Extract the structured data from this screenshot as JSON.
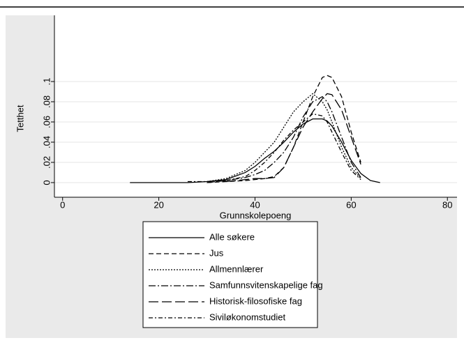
{
  "chart_data": {
    "type": "line",
    "y_label": "Tetthet",
    "x_label": "Grunnskolepoeng",
    "x": [
      14,
      20,
      26,
      30,
      34,
      38,
      40,
      42,
      44,
      46,
      48,
      50,
      52,
      54,
      55,
      56,
      58,
      60,
      62,
      64,
      66
    ],
    "series": [
      {
        "name": "Alle søkere",
        "color": "#000000",
        "dash": "none",
        "values": [
          0,
          0,
          0,
          0.001,
          0.003,
          0.01,
          0.016,
          0.024,
          0.031,
          0.04,
          0.05,
          0.058,
          0.063,
          0.063,
          0.061,
          0.056,
          0.04,
          0.022,
          0.009,
          0.002,
          0
        ]
      },
      {
        "name": "Jus",
        "color": "#000000",
        "dash": "7 4",
        "values": [
          null,
          null,
          null,
          0,
          0.001,
          0.002,
          0.003,
          0.004,
          0.006,
          0.015,
          0.035,
          0.06,
          0.085,
          0.104,
          0.106,
          0.104,
          0.085,
          0.05,
          0.02,
          null,
          null
        ]
      },
      {
        "name": "Allmennlærer",
        "color": "#000000",
        "dash": "2 2",
        "values": [
          null,
          null,
          null,
          0.001,
          0.004,
          0.012,
          0.02,
          0.03,
          0.04,
          0.055,
          0.07,
          0.08,
          0.088,
          0.08,
          0.072,
          0.06,
          0.035,
          0.015,
          0.004,
          null,
          null
        ]
      },
      {
        "name": "Samfunnsvitenskapelige fag",
        "color": "#000000",
        "dash": "10 3 2 3",
        "values": [
          null,
          null,
          null,
          0,
          0.002,
          0.005,
          0.008,
          0.012,
          0.02,
          0.03,
          0.045,
          0.065,
          0.08,
          0.085,
          0.08,
          0.07,
          0.045,
          0.02,
          0.005,
          null,
          null
        ]
      },
      {
        "name": "Historisk-filosofiske fag",
        "color": "#000000",
        "dash": "14 5",
        "values": [
          null,
          null,
          null,
          null,
          0.001,
          0.003,
          0.004,
          0.004,
          0.005,
          0.015,
          0.035,
          0.055,
          0.07,
          0.083,
          0.088,
          0.087,
          0.072,
          0.045,
          0.018,
          null,
          null
        ]
      },
      {
        "name": "Siviløkonomstudiet",
        "color": "#000000",
        "dash": "6 3 2 3",
        "values": [
          null,
          null,
          0.001,
          0.001,
          0.002,
          0.006,
          0.012,
          0.02,
          0.03,
          0.042,
          0.052,
          0.06,
          0.068,
          0.066,
          0.06,
          0.05,
          0.03,
          0.012,
          0.003,
          null,
          null
        ]
      }
    ],
    "xlim": [
      -1.7,
      82
    ],
    "xticks": [
      0,
      20,
      40,
      60,
      80
    ],
    "ylim": [
      -0.0145,
      0.1655
    ],
    "yticks": [
      0,
      {
        "value": 0.02,
        "label": ".02"
      },
      {
        "value": 0.04,
        "label": ".04"
      },
      {
        "value": 0.06,
        "label": ".06"
      },
      {
        "value": 0.08,
        "label": ".08"
      },
      {
        "value": 0.1,
        "label": ".1"
      }
    ],
    "grid": true,
    "legend": "bottom"
  }
}
